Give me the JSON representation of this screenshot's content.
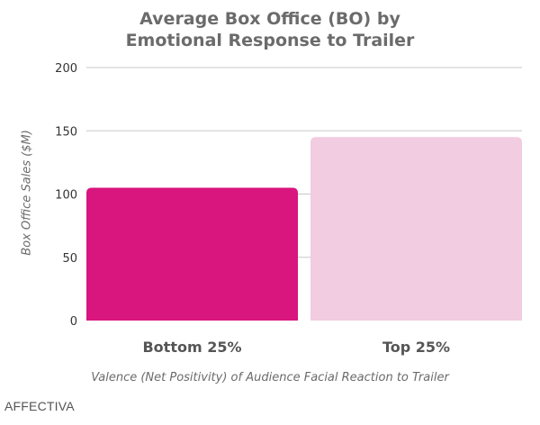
{
  "chart_data": {
    "type": "bar",
    "title_lines": [
      "Average Box Office (BO) by",
      "Emotional Response to Trailer"
    ],
    "ylabel": "Box Office Sales ($M)",
    "xlabel": "Valence (Net Positivity) of Audience Facial Reaction to Trailer",
    "categories": [
      "Bottom 25%",
      "Top 25%"
    ],
    "values": [
      105,
      145
    ],
    "bar_colors": [
      "#d9157e",
      "#f2cce0"
    ],
    "ylim": [
      0,
      200
    ],
    "yticks": [
      0,
      50,
      100,
      150,
      200
    ],
    "grid": true,
    "legend": "none"
  },
  "footer": {
    "brand": "AFFECTIVA"
  },
  "colors": {
    "gridline": "#c8c8c8",
    "axis_text": "#333333",
    "title_text": "#6b6b6b"
  }
}
